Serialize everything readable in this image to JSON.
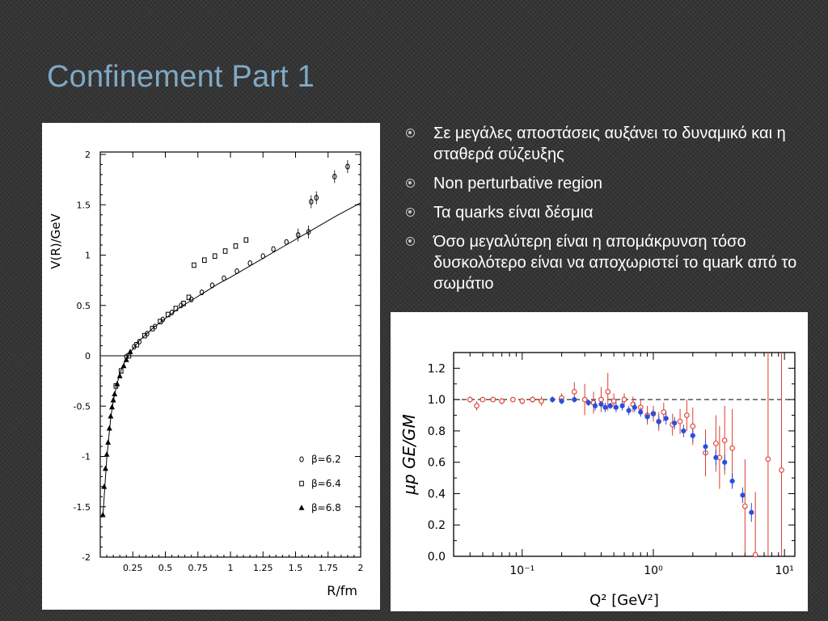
{
  "slide": {
    "title": "Confinement Part 1",
    "bullets": [
      "Σε μεγάλες αποστάσεις αυξάνει το δυναμικό και η σταθερά σύζευξης",
      "Non perturbative region",
      "Τα quarks είναι δέσμια",
      "Όσο μεγαλύτερη είναι η απομάκρυνση τόσο δυσκολότερο είναι να αποχωριστεί το quark από το σωμάτιο"
    ]
  },
  "chart_data": [
    {
      "type": "scatter",
      "xlabel": "R/fm",
      "ylabel": "V(R)/GeV",
      "xlim": [
        0,
        2
      ],
      "ylim": [
        -2,
        2.2
      ],
      "xticks": [
        "0.25",
        "0.5",
        "0.75",
        "1",
        "1.25",
        "1.5",
        "1.75",
        "2"
      ],
      "yticks": [
        "2",
        "1.5",
        "1",
        "0.5",
        "0",
        "-0.5",
        "-1",
        "-1.5",
        "-2"
      ],
      "legend": {
        "position": "bottom-right",
        "entries": [
          "β=6.2",
          "β=6.4",
          "β=6.8"
        ]
      },
      "fit_line": {
        "x": [
          0.02,
          0.05,
          0.08,
          0.1,
          0.13,
          0.16,
          0.2,
          0.25,
          0.3,
          0.35,
          0.4,
          0.5,
          0.6,
          0.7,
          0.8,
          0.9,
          1.0,
          1.2,
          1.4,
          1.6,
          1.8,
          2.0
        ],
        "y": [
          -1.6,
          -1.02,
          -0.62,
          -0.45,
          -0.27,
          -0.14,
          -0.03,
          0.07,
          0.15,
          0.21,
          0.27,
          0.37,
          0.47,
          0.55,
          0.63,
          0.71,
          0.78,
          0.93,
          1.08,
          1.23,
          1.38,
          1.52
        ]
      },
      "series": [
        {
          "name": "β=6.2",
          "marker": "circle",
          "x": [
            0.2,
            0.26,
            0.3,
            0.36,
            0.42,
            0.48,
            0.55,
            0.62,
            0.7,
            0.78,
            0.86,
            0.95,
            1.05,
            1.15,
            1.25,
            1.33,
            1.43,
            1.52,
            1.6,
            1.62,
            1.66,
            1.8,
            1.9
          ],
          "y": [
            -0.01,
            0.09,
            0.14,
            0.22,
            0.29,
            0.36,
            0.43,
            0.5,
            0.56,
            0.63,
            0.7,
            0.77,
            0.84,
            0.92,
            0.99,
            1.06,
            1.13,
            1.2,
            1.23,
            1.53,
            1.57,
            1.78,
            1.88
          ]
        },
        {
          "name": "β=6.4",
          "marker": "square",
          "x": [
            0.12,
            0.16,
            0.22,
            0.28,
            0.34,
            0.4,
            0.46,
            0.52,
            0.58,
            0.64,
            0.68,
            0.72,
            0.8,
            0.88,
            0.96,
            1.04,
            1.12
          ],
          "y": [
            -0.3,
            -0.15,
            0.0,
            0.11,
            0.2,
            0.27,
            0.34,
            0.41,
            0.47,
            0.52,
            0.58,
            0.9,
            0.95,
            0.99,
            1.04,
            1.09,
            1.15
          ]
        },
        {
          "name": "β=6.8",
          "marker": "triangle",
          "x": [
            0.02,
            0.03,
            0.04,
            0.05,
            0.06,
            0.07,
            0.08,
            0.09,
            0.1,
            0.11,
            0.13,
            0.15,
            0.18,
            0.2,
            0.23
          ],
          "y": [
            -1.58,
            -1.3,
            -1.12,
            -0.98,
            -0.86,
            -0.72,
            -0.6,
            -0.51,
            -0.44,
            -0.38,
            -0.28,
            -0.2,
            -0.1,
            -0.04,
            0.04
          ]
        }
      ]
    },
    {
      "type": "scatter",
      "xlabel": "Q² [GeV²]",
      "ylabel": "μp GE/GM",
      "xscale": "log",
      "xlim": [
        0.03,
        12
      ],
      "ylim": [
        0,
        1.3
      ],
      "xticks": [
        "10⁻¹",
        "10⁰",
        "10¹"
      ],
      "yticks": [
        "0.0",
        "0.2",
        "0.4",
        "0.6",
        "0.8",
        "1.0",
        "1.2"
      ],
      "reference_line": 1.0,
      "series": [
        {
          "marker": "open-circle",
          "color": "#e03c2c",
          "x": [
            0.04,
            0.045,
            0.05,
            0.06,
            0.07,
            0.085,
            0.1,
            0.12,
            0.14,
            0.2,
            0.25,
            0.3,
            0.35,
            0.4,
            0.45,
            0.5,
            0.6,
            0.7,
            0.8,
            0.9,
            1.0,
            1.1,
            1.2,
            1.4,
            1.6,
            1.8,
            2.0,
            2.5,
            3.0,
            3.2,
            3.5,
            4.0,
            5.0,
            6.0,
            7.5,
            9.5
          ],
          "y": [
            1.0,
            0.96,
            1.0,
            1.0,
            0.99,
            1.0,
            0.99,
            1.0,
            0.99,
            1.01,
            1.05,
            1.0,
            0.98,
            1.0,
            1.05,
            0.99,
            1.0,
            0.97,
            0.95,
            0.9,
            0.91,
            0.86,
            0.92,
            0.84,
            0.86,
            0.9,
            0.83,
            0.66,
            0.72,
            0.63,
            0.74,
            0.69,
            0.32,
            0.01,
            0.62,
            0.55
          ],
          "err": [
            0.02,
            0.03,
            0.01,
            0.01,
            0.02,
            0.01,
            0.02,
            0.02,
            0.03,
            0.03,
            0.06,
            0.1,
            0.07,
            0.08,
            0.12,
            0.05,
            0.04,
            0.05,
            0.05,
            0.06,
            0.05,
            0.06,
            0.06,
            0.07,
            0.08,
            0.1,
            0.12,
            0.15,
            0.18,
            0.2,
            0.22,
            0.25,
            0.3,
            0.4,
            0.7,
            0.75
          ]
        },
        {
          "marker": "filled-circle",
          "color": "#2c4fd8",
          "x": [
            0.17,
            0.2,
            0.25,
            0.32,
            0.36,
            0.4,
            0.43,
            0.47,
            0.52,
            0.58,
            0.65,
            0.72,
            0.8,
            0.9,
            1.0,
            1.1,
            1.25,
            1.45,
            1.7,
            2.0,
            2.5,
            3.0,
            3.5,
            4.0,
            4.8,
            5.6
          ],
          "y": [
            1.0,
            0.99,
            1.0,
            0.98,
            0.96,
            0.97,
            0.95,
            0.96,
            0.95,
            0.96,
            0.93,
            0.95,
            0.92,
            0.89,
            0.91,
            0.86,
            0.88,
            0.85,
            0.8,
            0.77,
            0.7,
            0.63,
            0.6,
            0.48,
            0.39,
            0.28
          ],
          "err": [
            0.02,
            0.02,
            0.02,
            0.02,
            0.03,
            0.02,
            0.03,
            0.02,
            0.03,
            0.03,
            0.03,
            0.03,
            0.03,
            0.03,
            0.03,
            0.04,
            0.04,
            0.04,
            0.04,
            0.04,
            0.05,
            0.05,
            0.05,
            0.05,
            0.05,
            0.06
          ]
        }
      ]
    }
  ]
}
